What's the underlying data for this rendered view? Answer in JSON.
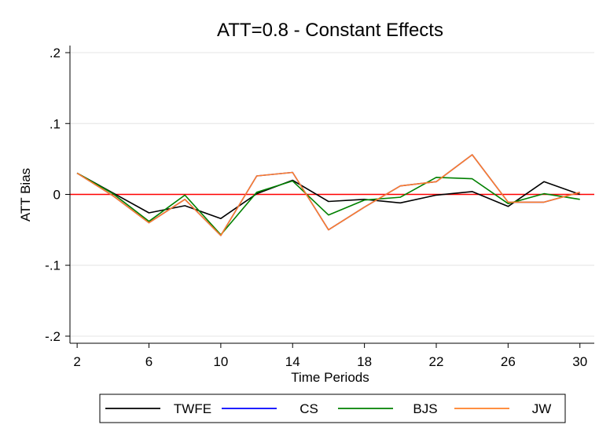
{
  "chart_data": {
    "type": "line",
    "title": "ATT=0.8 - Constant Effects",
    "xlabel": "Time Periods",
    "ylabel": "ATT Bias",
    "xlim": [
      1.6,
      30.8
    ],
    "ylim": [
      -0.21,
      0.21
    ],
    "xticks": [
      2,
      6,
      10,
      14,
      18,
      22,
      26,
      30
    ],
    "yticks": [
      -0.2,
      -0.1,
      0,
      0.1,
      0.2
    ],
    "ytick_labels": [
      "-.2",
      "-.1",
      "0",
      ".1",
      ".2"
    ],
    "grid": "horizontal",
    "reference_line": {
      "y": 0,
      "color": "#ff0000"
    },
    "legend_position": "bottom",
    "x": [
      2,
      4,
      6,
      8,
      10,
      12,
      14,
      16,
      18,
      20,
      22,
      24,
      26,
      28,
      30
    ],
    "series": [
      {
        "name": "TWFE",
        "color": "#000000",
        "values": [
          0.03,
          0.002,
          -0.026,
          -0.016,
          -0.034,
          0.001,
          0.02,
          -0.01,
          -0.007,
          -0.012,
          -0.001,
          0.004,
          -0.017,
          0.018,
          0.0
        ]
      },
      {
        "name": "CS",
        "color": "#0000ff",
        "values": [
          0.03,
          -0.002,
          -0.04,
          -0.007,
          -0.058,
          0.026,
          0.031,
          -0.05,
          -0.018,
          0.012,
          0.018,
          0.056,
          -0.011,
          -0.011,
          0.003
        ]
      },
      {
        "name": "BJS",
        "color": "#008000",
        "values": [
          0.03,
          0.001,
          -0.038,
          -0.001,
          -0.057,
          0.003,
          0.019,
          -0.029,
          -0.008,
          -0.004,
          0.024,
          0.022,
          -0.013,
          0.001,
          -0.007
        ]
      },
      {
        "name": "JW",
        "color": "#ff7f27",
        "values": [
          0.03,
          -0.002,
          -0.04,
          -0.007,
          -0.058,
          0.026,
          0.031,
          -0.05,
          -0.018,
          0.012,
          0.018,
          0.056,
          -0.011,
          -0.011,
          0.003
        ]
      }
    ]
  }
}
